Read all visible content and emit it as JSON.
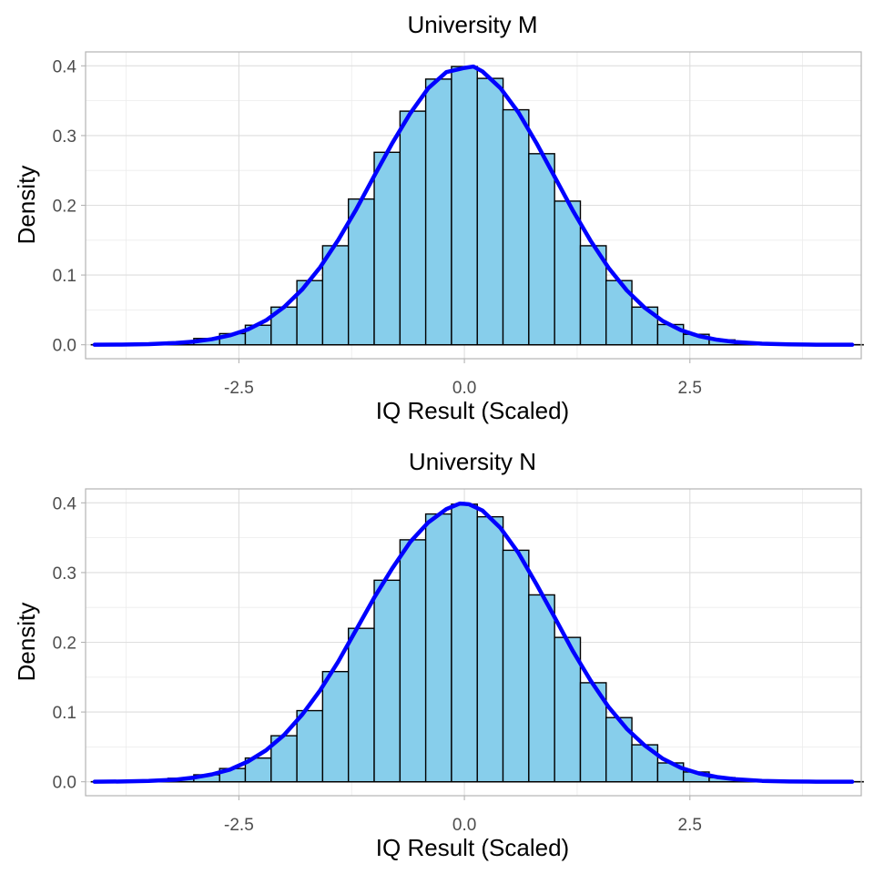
{
  "colors": {
    "bar_fill": "#87ceeb",
    "bar_outline": "#000000",
    "density_line": "#0000ff",
    "grid": "#dedede",
    "panel_border": "#b3b3b3"
  },
  "chart_data": [
    {
      "type": "bar",
      "title": "University M",
      "xlabel": "IQ Result (Scaled)",
      "ylabel": "Density",
      "xlim": [
        -4.2,
        4.4
      ],
      "ylim": [
        -0.02,
        0.42
      ],
      "grid": true,
      "legend": "none",
      "x_ticks": [
        -2.5,
        0.0,
        2.5
      ],
      "x_tick_labels": [
        "-2.5",
        "0.0",
        "2.5"
      ],
      "y_ticks": [
        0.0,
        0.1,
        0.2,
        0.3,
        0.4
      ],
      "y_tick_labels": [
        "0.0",
        "0.1",
        "0.2",
        "0.3",
        "0.4"
      ],
      "histogram": {
        "bin_width": 0.286,
        "bin_centers": [
          -4.0,
          -3.714,
          -3.429,
          -3.143,
          -2.857,
          -2.571,
          -2.286,
          -2.0,
          -1.714,
          -1.429,
          -1.143,
          -0.857,
          -0.571,
          -0.286,
          0.0,
          0.286,
          0.571,
          0.857,
          1.143,
          1.429,
          1.714,
          2.0,
          2.286,
          2.571,
          2.857,
          3.143,
          3.429,
          3.714,
          4.0,
          4.286
        ],
        "density": [
          0.0,
          0.0005,
          0.0015,
          0.004,
          0.009,
          0.016,
          0.028,
          0.054,
          0.092,
          0.142,
          0.209,
          0.276,
          0.335,
          0.381,
          0.399,
          0.382,
          0.337,
          0.274,
          0.206,
          0.142,
          0.092,
          0.054,
          0.029,
          0.015,
          0.007,
          0.003,
          0.001,
          0.0005,
          0.0,
          0.0
        ]
      },
      "density_curve": {
        "name": "",
        "x": [
          -4.1,
          -3.8,
          -3.5,
          -3.2,
          -3.0,
          -2.8,
          -2.6,
          -2.4,
          -2.2,
          -2.0,
          -1.8,
          -1.6,
          -1.4,
          -1.2,
          -1.0,
          -0.8,
          -0.6,
          -0.4,
          -0.2,
          0.0,
          0.1,
          0.2,
          0.4,
          0.6,
          0.8,
          1.0,
          1.2,
          1.4,
          1.6,
          1.8,
          2.0,
          2.2,
          2.4,
          2.6,
          2.8,
          3.0,
          3.3,
          3.6,
          3.9,
          4.3
        ],
        "y": [
          0.0,
          0.0003,
          0.0009,
          0.0025,
          0.0045,
          0.008,
          0.0135,
          0.022,
          0.035,
          0.054,
          0.079,
          0.111,
          0.15,
          0.194,
          0.242,
          0.289,
          0.332,
          0.368,
          0.391,
          0.397,
          0.399,
          0.392,
          0.368,
          0.333,
          0.289,
          0.241,
          0.193,
          0.149,
          0.11,
          0.078,
          0.053,
          0.034,
          0.021,
          0.0125,
          0.0072,
          0.004,
          0.0015,
          0.0005,
          0.0001,
          0.0
        ]
      }
    },
    {
      "type": "bar",
      "title": "University N",
      "xlabel": "IQ Result (Scaled)",
      "ylabel": "Density",
      "xlim": [
        -4.2,
        4.4
      ],
      "ylim": [
        -0.02,
        0.42
      ],
      "grid": true,
      "legend": "none",
      "x_ticks": [
        -2.5,
        0.0,
        2.5
      ],
      "x_tick_labels": [
        "-2.5",
        "0.0",
        "2.5"
      ],
      "y_ticks": [
        0.0,
        0.1,
        0.2,
        0.3,
        0.4
      ],
      "y_tick_labels": [
        "0.0",
        "0.1",
        "0.2",
        "0.3",
        "0.4"
      ],
      "histogram": {
        "bin_width": 0.286,
        "bin_centers": [
          -4.0,
          -3.714,
          -3.429,
          -3.143,
          -2.857,
          -2.571,
          -2.286,
          -2.0,
          -1.714,
          -1.429,
          -1.143,
          -0.857,
          -0.571,
          -0.286,
          0.0,
          0.286,
          0.571,
          0.857,
          1.143,
          1.429,
          1.714,
          2.0,
          2.286,
          2.571,
          2.857,
          3.143,
          3.429,
          3.714,
          4.0,
          4.286
        ],
        "density": [
          0.0,
          0.0005,
          0.002,
          0.005,
          0.01,
          0.019,
          0.034,
          0.066,
          0.102,
          0.158,
          0.22,
          0.289,
          0.347,
          0.384,
          0.398,
          0.38,
          0.332,
          0.268,
          0.207,
          0.142,
          0.092,
          0.053,
          0.027,
          0.014,
          0.006,
          0.002,
          0.001,
          0.0005,
          0.0,
          0.0
        ]
      },
      "density_curve": {
        "name": "",
        "x": [
          -4.1,
          -3.8,
          -3.5,
          -3.2,
          -3.0,
          -2.8,
          -2.6,
          -2.4,
          -2.2,
          -2.0,
          -1.8,
          -1.6,
          -1.4,
          -1.2,
          -1.0,
          -0.8,
          -0.6,
          -0.4,
          -0.2,
          -0.05,
          0.05,
          0.2,
          0.4,
          0.6,
          0.8,
          1.0,
          1.2,
          1.4,
          1.6,
          1.8,
          2.0,
          2.2,
          2.4,
          2.6,
          2.8,
          3.0,
          3.3,
          3.6,
          3.9,
          4.3
        ],
        "y": [
          0.0,
          0.0004,
          0.0012,
          0.003,
          0.006,
          0.0105,
          0.0175,
          0.029,
          0.045,
          0.067,
          0.096,
          0.131,
          0.172,
          0.218,
          0.264,
          0.306,
          0.344,
          0.372,
          0.391,
          0.399,
          0.398,
          0.389,
          0.364,
          0.328,
          0.283,
          0.236,
          0.188,
          0.145,
          0.107,
          0.076,
          0.052,
          0.033,
          0.02,
          0.012,
          0.0068,
          0.0036,
          0.0013,
          0.0004,
          0.0001,
          0.0
        ]
      }
    }
  ]
}
